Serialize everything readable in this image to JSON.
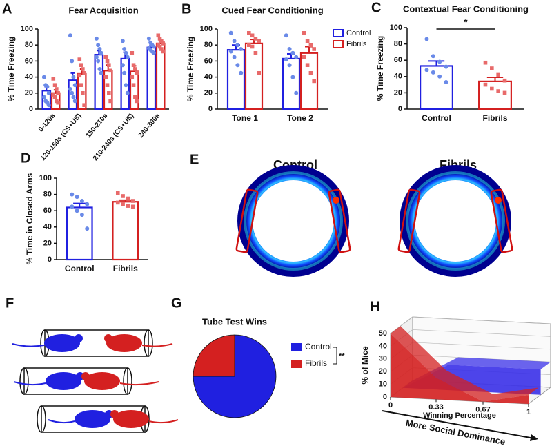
{
  "chart_data": [
    {
      "type": "bar",
      "label": "A",
      "title": "Fear Acquisition",
      "ylabel": "% Time Freezing",
      "categories": [
        "0-120s",
        "120-150s (CS+US)",
        "150-210s",
        "210-240s (CS+US)",
        "240-300s"
      ],
      "series": [
        {
          "name": "Control",
          "color": "#2020e0",
          "values": [
            23,
            36,
            68,
            63,
            77
          ],
          "errors": [
            5,
            9,
            5,
            8,
            3
          ],
          "points": [
            [
              40,
              30,
              28,
              20,
              15,
              10,
              8,
              5
            ],
            [
              92,
              60,
              40,
              30,
              25,
              20,
              15,
              10
            ],
            [
              88,
              80,
              75,
              70,
              65,
              60,
              50,
              45
            ],
            [
              85,
              75,
              70,
              65,
              55,
              45,
              30,
              20
            ],
            [
              88,
              83,
              80,
              78,
              76,
              74,
              72,
              70
            ]
          ]
        },
        {
          "name": "Fibrils",
          "color": "#d42020",
          "values": [
            20,
            44,
            48,
            47,
            82
          ],
          "errors": [
            4,
            6,
            7,
            7,
            3
          ],
          "points": [
            [
              38,
              30,
              25,
              20,
              18,
              15,
              10,
              8
            ],
            [
              62,
              55,
              50,
              45,
              42,
              30,
              20,
              5
            ],
            [
              65,
              60,
              55,
              48,
              40,
              30,
              20,
              10
            ],
            [
              70,
              55,
              50,
              45,
              40,
              30,
              15,
              10
            ],
            [
              92,
              88,
              85,
              82,
              80,
              78,
              75,
              72
            ]
          ]
        }
      ],
      "ylim": [
        0,
        100
      ],
      "yticks": [
        0,
        20,
        40,
        60,
        80,
        100
      ]
    },
    {
      "type": "bar",
      "label": "B",
      "title": "Cued Fear Conditioning",
      "ylabel": "% Time Freezing",
      "categories": [
        "Tone 1",
        "Tone 2"
      ],
      "series": [
        {
          "name": "Control",
          "color": "#2020e0",
          "values": [
            74,
            63
          ],
          "errors": [
            6,
            6
          ],
          "points": [
            [
              95,
              85,
              80,
              75,
              72,
              65,
              55,
              45
            ],
            [
              92,
              75,
              70,
              65,
              62,
              55,
              40,
              20
            ]
          ]
        },
        {
          "name": "Fibrils",
          "color": "#d42020",
          "values": [
            82,
            70
          ],
          "errors": [
            5,
            8
          ],
          "points": [
            [
              95,
              92,
              88,
              85,
              80,
              78,
              70,
              45
            ],
            [
              95,
              85,
              80,
              75,
              65,
              55,
              45,
              35
            ]
          ]
        }
      ],
      "ylim": [
        0,
        100
      ],
      "yticks": [
        0,
        20,
        40,
        60,
        80,
        100
      ],
      "legend": "top-right"
    },
    {
      "type": "bar",
      "label": "C",
      "title": "Contextual Fear Conditioning",
      "ylabel": "% Time Freezing",
      "categories": [
        "Control",
        "Fibrils"
      ],
      "values": [
        53,
        34
      ],
      "errors": [
        6,
        5
      ],
      "colors": [
        "#2020e0",
        "#d42020"
      ],
      "points": [
        [
          86,
          65,
          58,
          52,
          48,
          45,
          40,
          33
        ],
        [
          57,
          50,
          42,
          35,
          30,
          25,
          22,
          20
        ]
      ],
      "annotation": "*",
      "ylim": [
        0,
        100
      ],
      "yticks": [
        0,
        20,
        40,
        60,
        80,
        100
      ]
    },
    {
      "type": "bar",
      "label": "D",
      "ylabel": "% Time in Closed Arms",
      "categories": [
        "Control",
        "Fibrils"
      ],
      "values": [
        64,
        71
      ],
      "errors": [
        5,
        2
      ],
      "colors": [
        "#2020e0",
        "#d42020"
      ],
      "points": [
        [
          80,
          77,
          72,
          68,
          65,
          60,
          55,
          38
        ],
        [
          82,
          78,
          75,
          72,
          70,
          68,
          66,
          65
        ]
      ],
      "ylim": [
        0,
        100
      ],
      "yticks": [
        0,
        20,
        40,
        60,
        80,
        100
      ]
    },
    {
      "type": "pie",
      "label": "G",
      "title": "Tube Test Wins",
      "categories": [
        "Control",
        "Fibrils"
      ],
      "values": [
        75,
        25
      ],
      "colors": [
        "#2020e0",
        "#d42020"
      ],
      "annotation": "**"
    },
    {
      "type": "area3d",
      "label": "H",
      "ylabel": "% of Mice",
      "xlabel": "Winning Percentage",
      "arrow_label": "More Social Dominance",
      "x": [
        0,
        0.33,
        0.67,
        1
      ],
      "series": [
        {
          "name": "Control",
          "color": "#3a30e8",
          "values": [
            0,
            20,
            20,
            20
          ]
        },
        {
          "name": "Fibrils",
          "color": "#d42020",
          "values": [
            50,
            17,
            0,
            7
          ]
        }
      ],
      "xlim": [
        0,
        1
      ],
      "xticks": [
        0,
        0.33,
        0.67,
        1
      ],
      "ylim": [
        0,
        50
      ],
      "yticks": [
        0,
        10,
        20,
        30,
        40,
        50
      ]
    }
  ],
  "panel_e": {
    "label": "E",
    "titles": [
      "Control",
      "Fibrils"
    ]
  },
  "panel_f": {
    "label": "F"
  }
}
